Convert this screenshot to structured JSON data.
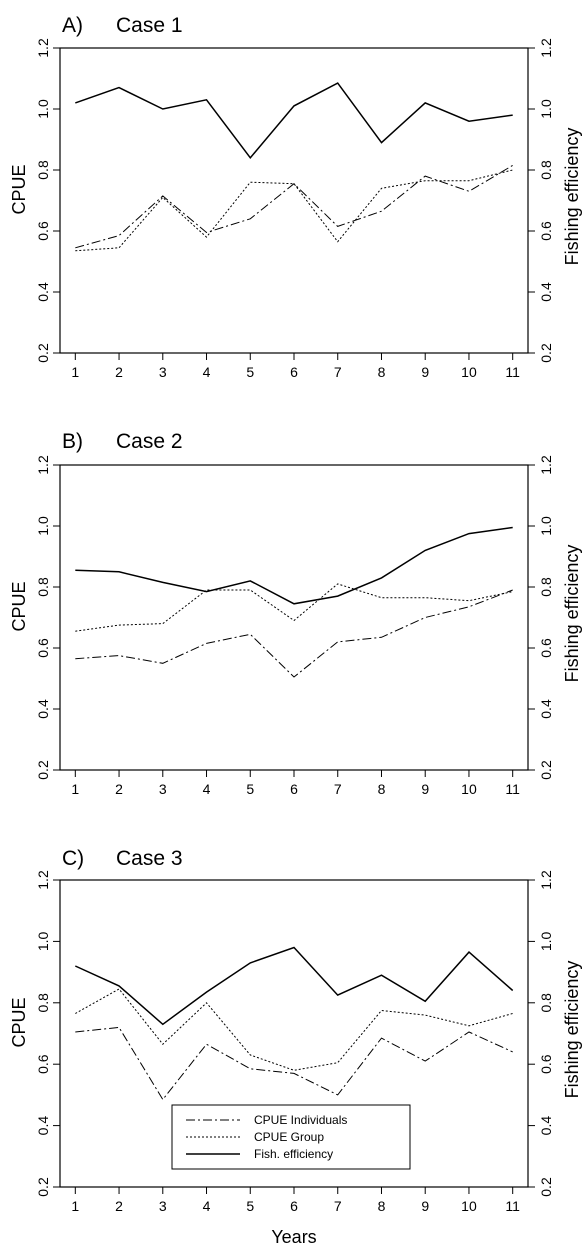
{
  "chart_data": [
    {
      "type": "line",
      "panel_letter": "A)",
      "title": "Case 1",
      "ylabel": "CPUE",
      "y2label": "Fishing efficiency",
      "xlabel": "",
      "x": [
        1,
        2,
        3,
        4,
        5,
        6,
        7,
        8,
        9,
        10,
        11
      ],
      "xticks": [
        "1",
        "2",
        "3",
        "4",
        "5",
        "6",
        "7",
        "8",
        "9",
        "10",
        "11"
      ],
      "ylim": [
        0.2,
        1.2
      ],
      "yticks": [
        "0.2",
        "0.4",
        "0.6",
        "0.8",
        "1.0",
        "1.2"
      ],
      "y2lim": [
        0.2,
        1.2
      ],
      "y2ticks": [
        "0.2",
        "0.4",
        "0.6",
        "0.8",
        "1.0",
        "1.2"
      ],
      "series": [
        {
          "name": "CPUE Individuals",
          "style": "dashdot",
          "values": [
            0.545,
            0.585,
            0.715,
            0.595,
            0.64,
            0.755,
            0.615,
            0.665,
            0.78,
            0.73,
            0.815
          ]
        },
        {
          "name": "CPUE Group",
          "style": "dotted",
          "values": [
            0.535,
            0.545,
            0.71,
            0.58,
            0.76,
            0.755,
            0.565,
            0.74,
            0.765,
            0.765,
            0.8
          ]
        },
        {
          "name": "Fish. efficiency",
          "style": "solid",
          "values": [
            1.02,
            1.07,
            1.0,
            1.03,
            0.84,
            1.01,
            1.085,
            0.89,
            1.02,
            0.96,
            0.98
          ]
        }
      ],
      "legend": null
    },
    {
      "type": "line",
      "panel_letter": "B)",
      "title": "Case 2",
      "ylabel": "CPUE",
      "y2label": "Fishing efficiency",
      "xlabel": "",
      "x": [
        1,
        2,
        3,
        4,
        5,
        6,
        7,
        8,
        9,
        10,
        11
      ],
      "xticks": [
        "1",
        "2",
        "3",
        "4",
        "5",
        "6",
        "7",
        "8",
        "9",
        "10",
        "11"
      ],
      "ylim": [
        0.2,
        1.2
      ],
      "yticks": [
        "0.2",
        "0.4",
        "0.6",
        "0.8",
        "1.0",
        "1.2"
      ],
      "y2lim": [
        0.2,
        1.2
      ],
      "y2ticks": [
        "0.2",
        "0.4",
        "0.6",
        "0.8",
        "1.0",
        "1.2"
      ],
      "series": [
        {
          "name": "CPUE Individuals",
          "style": "dashdot",
          "values": [
            0.565,
            0.575,
            0.55,
            0.615,
            0.645,
            0.505,
            0.62,
            0.635,
            0.7,
            0.735,
            0.79
          ]
        },
        {
          "name": "CPUE Group",
          "style": "dotted",
          "values": [
            0.655,
            0.675,
            0.68,
            0.79,
            0.79,
            0.69,
            0.81,
            0.765,
            0.765,
            0.755,
            0.785
          ]
        },
        {
          "name": "Fish. efficiency",
          "style": "solid",
          "values": [
            0.855,
            0.85,
            0.815,
            0.785,
            0.82,
            0.745,
            0.77,
            0.83,
            0.92,
            0.975,
            0.995
          ]
        }
      ],
      "legend": null
    },
    {
      "type": "line",
      "panel_letter": "C)",
      "title": "Case 3",
      "ylabel": "CPUE",
      "y2label": "Fishing efficiency",
      "xlabel": "Years",
      "x": [
        1,
        2,
        3,
        4,
        5,
        6,
        7,
        8,
        9,
        10,
        11
      ],
      "xticks": [
        "1",
        "2",
        "3",
        "4",
        "5",
        "6",
        "7",
        "8",
        "9",
        "10",
        "11"
      ],
      "ylim": [
        0.2,
        1.2
      ],
      "yticks": [
        "0.2",
        "0.4",
        "0.6",
        "0.8",
        "1.0",
        "1.2"
      ],
      "y2lim": [
        0.2,
        1.2
      ],
      "y2ticks": [
        "0.2",
        "0.4",
        "0.6",
        "0.8",
        "1.0",
        "1.2"
      ],
      "series": [
        {
          "name": "CPUE Individuals",
          "style": "dashdot",
          "values": [
            0.705,
            0.72,
            0.485,
            0.665,
            0.585,
            0.57,
            0.5,
            0.685,
            0.61,
            0.705,
            0.64
          ]
        },
        {
          "name": "CPUE Group",
          "style": "dotted",
          "values": [
            0.765,
            0.845,
            0.665,
            0.8,
            0.63,
            0.58,
            0.605,
            0.775,
            0.76,
            0.725,
            0.765
          ]
        },
        {
          "name": "Fish. efficiency",
          "style": "solid",
          "values": [
            0.92,
            0.855,
            0.73,
            0.835,
            0.93,
            0.98,
            0.825,
            0.89,
            0.805,
            0.965,
            0.84
          ]
        }
      ],
      "legend": {
        "placement": "bottom-center",
        "entries": [
          "CPUE Individuals",
          "CPUE Group",
          "Fish. efficiency"
        ]
      }
    }
  ]
}
